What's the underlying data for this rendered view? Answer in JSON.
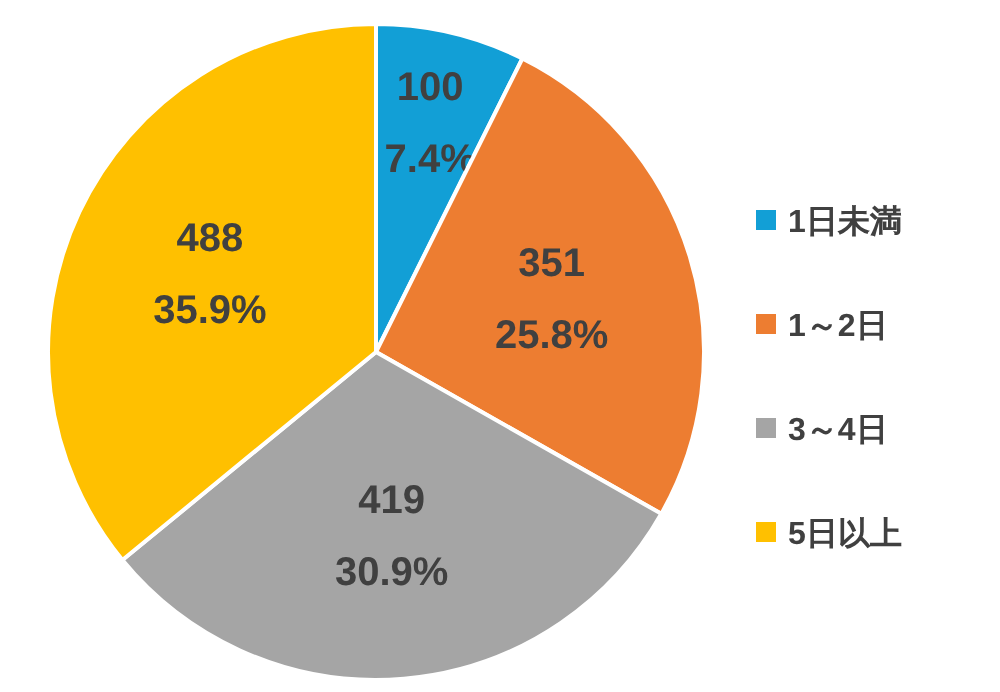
{
  "chart_data": {
    "type": "pie",
    "categories": [
      "1日未満",
      "1～2日",
      "3～4日",
      "5日以上"
    ],
    "values": [
      100,
      351,
      419,
      488
    ],
    "colors": [
      "#129fd6",
      "#ed7d31",
      "#a5a5a5",
      "#ffc000"
    ],
    "value_labels": [
      "100\n7.4%",
      "351\n25.8%",
      "419\n30.9%",
      "488\n35.9%"
    ],
    "legend": "right"
  }
}
